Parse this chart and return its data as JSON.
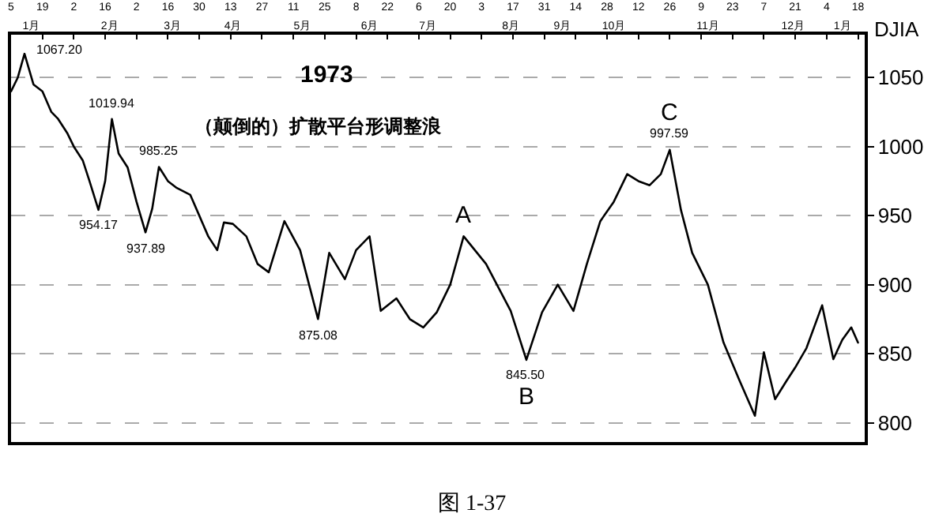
{
  "chart_data": {
    "type": "line",
    "title": "1973",
    "subtitle": "（颠倒的）扩散平台形调整浪",
    "ylabel": "DJIA",
    "xlim": [
      "1973-01-05",
      "1974-01-21"
    ],
    "ylim": [
      786,
      1081
    ],
    "xticks": [
      {
        "value": "1973-01-05",
        "label": "5"
      },
      {
        "value": "1973-01-19",
        "label": "19"
      },
      {
        "value": "1973-02-02",
        "label": "2"
      },
      {
        "value": "1973-02-16",
        "label": "16"
      },
      {
        "value": "1973-03-02",
        "label": "2"
      },
      {
        "value": "1973-03-16",
        "label": "16"
      },
      {
        "value": "1973-03-30",
        "label": "30"
      },
      {
        "value": "1973-04-13",
        "label": "13"
      },
      {
        "value": "1973-04-27",
        "label": "27"
      },
      {
        "value": "1973-05-11",
        "label": "11"
      },
      {
        "value": "1973-05-25",
        "label": "25"
      },
      {
        "value": "1973-06-08",
        "label": "8"
      },
      {
        "value": "1973-06-22",
        "label": "22"
      },
      {
        "value": "1973-07-06",
        "label": "6"
      },
      {
        "value": "1973-07-20",
        "label": "20"
      },
      {
        "value": "1973-08-03",
        "label": "3"
      },
      {
        "value": "1973-08-17",
        "label": "17"
      },
      {
        "value": "1973-08-31",
        "label": "31"
      },
      {
        "value": "1973-09-14",
        "label": "14"
      },
      {
        "value": "1973-09-28",
        "label": "28"
      },
      {
        "value": "1973-10-12",
        "label": "12"
      },
      {
        "value": "1973-10-26",
        "label": "26"
      },
      {
        "value": "1973-11-09",
        "label": "9"
      },
      {
        "value": "1973-11-23",
        "label": "23"
      },
      {
        "value": "1973-12-07",
        "label": "7"
      },
      {
        "value": "1973-12-21",
        "label": "21"
      },
      {
        "value": "1974-01-04",
        "label": "4"
      },
      {
        "value": "1974-01-18",
        "label": "18"
      }
    ],
    "x2lim": [
      "1973-01-05",
      "1974-01-21"
    ],
    "x2ticks": [
      {
        "value": "1973-01-14",
        "label": "1月"
      },
      {
        "value": "1973-02-18",
        "label": "2月"
      },
      {
        "value": "1973-03-18",
        "label": "3月"
      },
      {
        "value": "1973-04-14",
        "label": "4月"
      },
      {
        "value": "1973-05-15",
        "label": "5月"
      },
      {
        "value": "1973-06-14",
        "label": "6月"
      },
      {
        "value": "1973-07-10",
        "label": "7月"
      },
      {
        "value": "1973-08-16",
        "label": "8月"
      },
      {
        "value": "1973-09-08",
        "label": "9月"
      },
      {
        "value": "1973-10-01",
        "label": "10月"
      },
      {
        "value": "1973-11-12",
        "label": "11月"
      },
      {
        "value": "1973-12-20",
        "label": "12月"
      },
      {
        "value": "1974-01-11",
        "label": "1月"
      }
    ],
    "yticks": [
      800,
      850,
      900,
      950,
      1000,
      1050
    ],
    "grid": "y",
    "x": [
      "1973-01-05",
      "1973-01-08",
      "1973-01-11",
      "1973-01-15",
      "1973-01-19",
      "1973-01-23",
      "1973-01-26",
      "1973-01-30",
      "1973-02-02",
      "1973-02-06",
      "1973-02-09",
      "1973-02-13",
      "1973-02-16",
      "1973-02-19",
      "1973-02-22",
      "1973-02-26",
      "1973-03-02",
      "1973-03-06",
      "1973-03-09",
      "1973-03-12",
      "1973-03-16",
      "1973-03-20",
      "1973-03-26",
      "1973-03-30",
      "1973-04-03",
      "1973-04-07",
      "1973-04-10",
      "1973-04-14",
      "1973-04-20",
      "1973-04-25",
      "1973-04-30",
      "1973-05-07",
      "1973-05-14",
      "1973-05-22",
      "1973-05-27",
      "1973-06-03",
      "1973-06-08",
      "1973-06-14",
      "1973-06-19",
      "1973-06-26",
      "1973-07-02",
      "1973-07-08",
      "1973-07-14",
      "1973-07-20",
      "1973-07-26",
      "1973-08-05",
      "1973-08-16",
      "1973-08-23",
      "1973-08-30",
      "1973-09-06",
      "1973-09-13",
      "1973-09-19",
      "1973-09-25",
      "1973-10-01",
      "1973-10-07",
      "1973-10-12",
      "1973-10-17",
      "1973-10-22",
      "1973-10-26",
      "1973-10-31",
      "1973-11-05",
      "1973-11-12",
      "1973-11-19",
      "1973-11-26",
      "1973-12-03",
      "1973-12-07",
      "1973-12-12",
      "1973-12-17",
      "1973-12-21",
      "1973-12-26",
      "1974-01-02",
      "1974-01-07",
      "1974-01-11",
      "1974-01-15",
      "1974-01-18"
    ],
    "series": [
      {
        "color": "#000000",
        "values": [
          1040,
          1050,
          1067.2,
          1045,
          1040,
          1025,
          1020,
          1010,
          1000,
          990,
          975,
          954.17,
          975,
          1019.94,
          995,
          985,
          960,
          937.89,
          955,
          985.25,
          975,
          970,
          965,
          950,
          935,
          925,
          945,
          944,
          935,
          915,
          909,
          946,
          925,
          875.08,
          923,
          904,
          925,
          935,
          881,
          890,
          875,
          869,
          880,
          900,
          935,
          915,
          881,
          845.5,
          880,
          900,
          881,
          915,
          946,
          960,
          980,
          975,
          972,
          980,
          997.59,
          954,
          923,
          900,
          858,
          831,
          805,
          851,
          817,
          830,
          840,
          854,
          885,
          846,
          860,
          869,
          858
        ]
      }
    ],
    "annotations": [
      {
        "text": "1067.20",
        "x": "1973-01-11",
        "y": 1067.2
      },
      {
        "text": "1019.94",
        "x": "1973-02-19",
        "y": 1019.94
      },
      {
        "text": "954.17",
        "x": "1973-02-13",
        "y": 954.17
      },
      {
        "text": "937.89",
        "x": "1973-03-06",
        "y": 937.89
      },
      {
        "text": "985.25",
        "x": "1973-03-12",
        "y": 985.25
      },
      {
        "text": "875.08",
        "x": "1973-05-22",
        "y": 875.08
      },
      {
        "text": "A",
        "x": "1973-07-26",
        "y": 935
      },
      {
        "text": "845.50",
        "x": "1973-08-23",
        "y": 845.5
      },
      {
        "text": "B",
        "x": "1973-08-23",
        "y": 845.5
      },
      {
        "text": "997.59",
        "x": "1973-10-26",
        "y": 997.59
      },
      {
        "text": "C",
        "x": "1973-10-26",
        "y": 997.59
      },
      "图 1-37"
    ]
  }
}
